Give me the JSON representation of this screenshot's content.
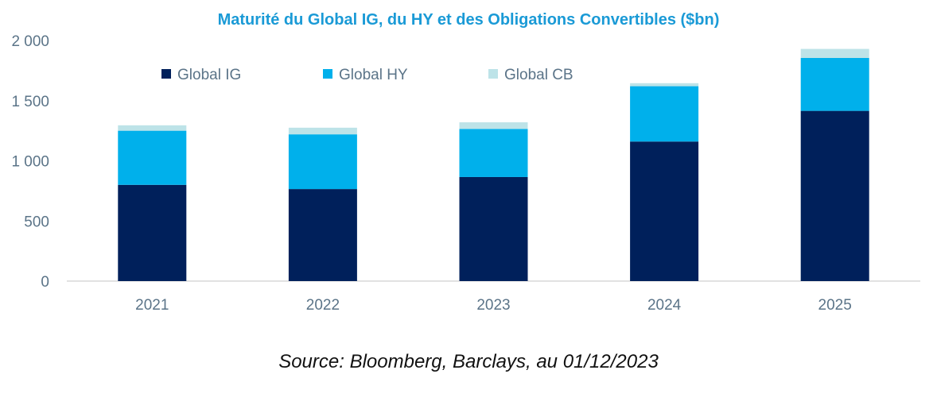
{
  "chart_data": {
    "type": "bar",
    "stacked": true,
    "title": "Maturité du Global IG, du HY et des Obligations Convertibles ($bn)",
    "categories": [
      "2021",
      "2022",
      "2023",
      "2024",
      "2025"
    ],
    "series": [
      {
        "name": "Global IG",
        "color": "#00205b",
        "values": [
          800,
          765,
          865,
          1160,
          1415
        ]
      },
      {
        "name": "Global HY",
        "color": "#00b0eb",
        "values": [
          450,
          455,
          400,
          460,
          440
        ]
      },
      {
        "name": "Global CB",
        "color": "#bde3e8",
        "values": [
          45,
          55,
          55,
          25,
          75
        ]
      }
    ],
    "ylim": [
      0,
      2000
    ],
    "yticks": [
      0,
      500,
      1000,
      1500,
      2000
    ],
    "ytick_labels": [
      "0",
      "500",
      "1 000",
      "1 500",
      "2 000"
    ],
    "xlabel": "",
    "ylabel": "",
    "grid": false,
    "legend_position": "top"
  },
  "source": "Source: Bloomberg, Barclays, au 01/12/2023"
}
